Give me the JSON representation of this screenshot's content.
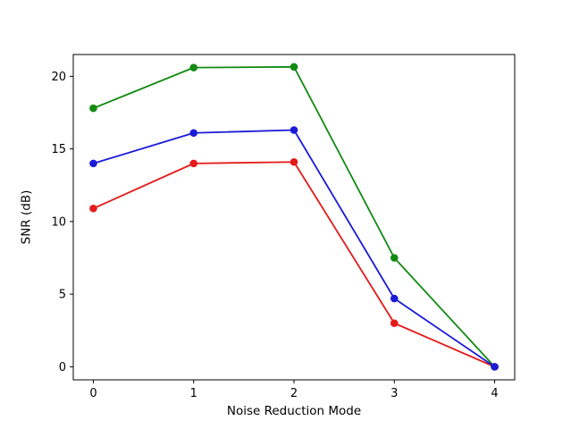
{
  "figure": {
    "background": "#ffffff",
    "spine_color": "#000000",
    "text_color": "#000000"
  },
  "chart_data": {
    "type": "line",
    "title": "",
    "xlabel": "Noise Reduction Mode",
    "ylabel": "SNR (dB)",
    "x": [
      0,
      1,
      2,
      3,
      4
    ],
    "xticks": [
      "0",
      "1",
      "2",
      "3",
      "4"
    ],
    "yticks": [
      "0",
      "5",
      "10",
      "15",
      "20"
    ],
    "ytick_values": [
      0,
      5,
      10,
      15,
      20
    ],
    "xlim": [
      -0.2,
      4.2
    ],
    "ylim": [
      -0.9,
      21.5
    ],
    "grid": false,
    "legend": "none",
    "marker": "circle",
    "series": [
      {
        "name": "green-line",
        "color": "#128a12",
        "values": [
          17.8,
          20.6,
          20.65,
          7.5,
          0.0
        ]
      },
      {
        "name": "red-line",
        "color": "#e41a1a",
        "values": [
          10.9,
          14.0,
          14.1,
          3.0,
          0.0
        ]
      },
      {
        "name": "blue-line",
        "color": "#1a1ad8",
        "values": [
          14.0,
          16.1,
          16.3,
          4.7,
          0.0
        ]
      }
    ]
  }
}
